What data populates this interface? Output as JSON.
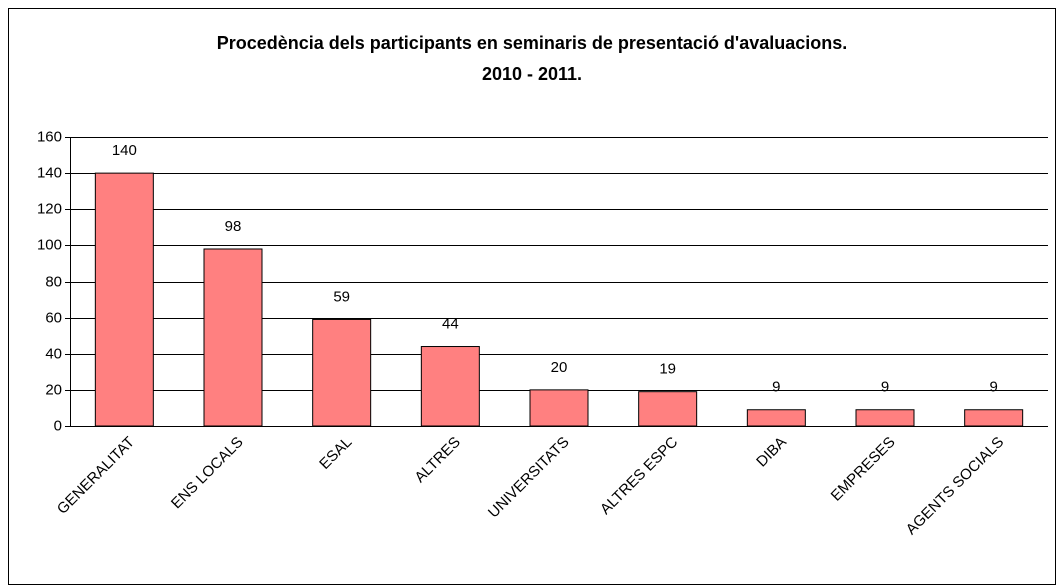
{
  "chart_data": {
    "type": "bar",
    "title": [
      "Procedència dels participants en seminaris de presentació d'avaluacions.",
      "2010 - 2011."
    ],
    "categories": [
      "GENERALITAT",
      "ENS LOCALS",
      "ESAL",
      "ALTRES",
      "UNIVERSITATS",
      "ALTRES ESPC",
      "DIBA",
      "EMPRESES",
      "AGENTS SOCIALS"
    ],
    "values": [
      140,
      98,
      59,
      44,
      20,
      19,
      9,
      9,
      9
    ],
    "color": "#ff8080",
    "ylim": [
      0,
      160
    ],
    "yticks": [
      0,
      20,
      40,
      60,
      80,
      100,
      120,
      140,
      160
    ],
    "grid": true
  }
}
